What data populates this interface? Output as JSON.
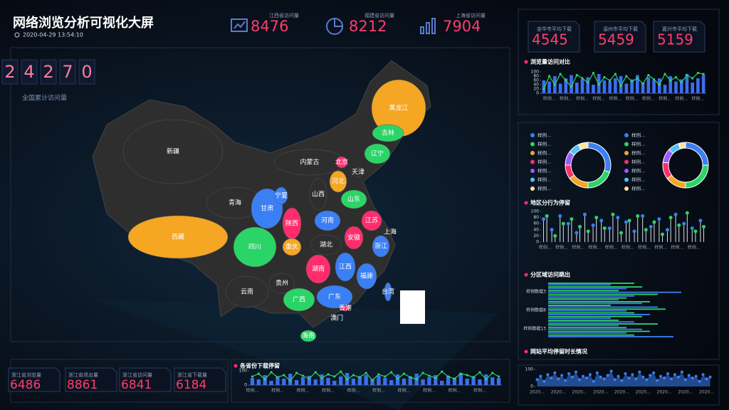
{
  "header": {
    "title": "网络浏览分析可视化大屏",
    "datetime": "2020-04-29 13:54:10"
  },
  "stats": [
    {
      "label": "江西省访问量",
      "value": "8476"
    },
    {
      "label": "福建省访问量",
      "value": "8212"
    },
    {
      "label": "上海省访问量",
      "value": "7904"
    }
  ],
  "total": {
    "digits": [
      "2",
      "4",
      "2",
      "7",
      "0"
    ],
    "label": "全国累计访问量"
  },
  "map": {
    "provinces": [
      {
        "name": "新疆",
        "color": "#2e2e2e"
      },
      {
        "name": "西藏",
        "color": "#f5a623"
      },
      {
        "name": "青海",
        "color": "#2e2e2e"
      },
      {
        "name": "甘肃",
        "color": "#3b7ff5"
      },
      {
        "name": "内蒙古",
        "color": "#2e2e2e"
      },
      {
        "name": "黑龙江",
        "color": "#f5a623"
      },
      {
        "name": "吉林",
        "color": "#2bd467"
      },
      {
        "name": "辽宁",
        "color": "#2bd467"
      },
      {
        "name": "北京",
        "color": "#ff2d6e"
      },
      {
        "name": "天津",
        "color": "#2e2e2e"
      },
      {
        "name": "河北",
        "color": "#f5a623"
      },
      {
        "name": "山西",
        "color": "#2e2e2e"
      },
      {
        "name": "山东",
        "color": "#2bd467"
      },
      {
        "name": "宁夏",
        "color": "#3b7ff5"
      },
      {
        "name": "陕西",
        "color": "#ff2d6e"
      },
      {
        "name": "河南",
        "color": "#3b7ff5"
      },
      {
        "name": "江苏",
        "color": "#ff2d6e"
      },
      {
        "name": "安徽",
        "color": "#ff2d6e"
      },
      {
        "name": "上海",
        "color": "#2e2e2e"
      },
      {
        "name": "四川",
        "color": "#2bd467"
      },
      {
        "name": "重庆",
        "color": "#f5a623"
      },
      {
        "name": "湖北",
        "color": "#2e2e2e"
      },
      {
        "name": "浙江",
        "color": "#3b7ff5"
      },
      {
        "name": "湖南",
        "color": "#ff2d6e"
      },
      {
        "name": "江西",
        "color": "#3b7ff5"
      },
      {
        "name": "福建",
        "color": "#3b7ff5"
      },
      {
        "name": "贵州",
        "color": "#2e2e2e"
      },
      {
        "name": "云南",
        "color": "#2e2e2e"
      },
      {
        "name": "广西",
        "color": "#2bd467"
      },
      {
        "name": "广东",
        "color": "#3b7ff5"
      },
      {
        "name": "台湾",
        "color": "#3b7ff5"
      },
      {
        "name": "香港",
        "color": "#ff2d6e"
      },
      {
        "name": "澳门",
        "color": "#2e2e2e"
      },
      {
        "name": "海南",
        "color": "#2bd467"
      }
    ]
  },
  "bottom_stats": [
    {
      "label": "浙江省浏览量",
      "value": "6486"
    },
    {
      "label": "浙江省退出量",
      "value": "8861"
    },
    {
      "label": "浙江省访问量",
      "value": "6841"
    },
    {
      "label": "浙江省下载量",
      "value": "6184"
    }
  ],
  "right_stats": [
    {
      "label": "金华市平均下载",
      "value": "4545"
    },
    {
      "label": "温州市平均下载",
      "value": "5459"
    },
    {
      "label": "嘉兴市平均下载",
      "value": "5159"
    }
  ],
  "chart_data": [
    {
      "type": "bar_line",
      "title": "浏览量访问对比",
      "categories": [
        null,
        "样例...",
        null,
        null,
        "样例...",
        null,
        null,
        "样例...",
        null,
        null,
        "样例...",
        null,
        null,
        "样例...",
        null,
        null,
        "样例...",
        null,
        null,
        "样例...",
        null,
        null,
        "样例...",
        null,
        null,
        "样例...",
        null,
        null,
        "样例...",
        null
      ],
      "ylim": [
        0,
        100
      ],
      "yticks": [
        0,
        20,
        40,
        60,
        80,
        100
      ],
      "series": [
        {
          "kind": "bar",
          "color": "#3b6ff0",
          "values": [
            60,
            55,
            80,
            45,
            70,
            85,
            50,
            65,
            75,
            40,
            90,
            60,
            55,
            70,
            80,
            45,
            65,
            85,
            50,
            75,
            60,
            70,
            40,
            80,
            55,
            65,
            90,
            50,
            70,
            85
          ]
        },
        {
          "kind": "line",
          "color": "#2bd467",
          "values": [
            20,
            80,
            40,
            90,
            60,
            30,
            85,
            70,
            50,
            95,
            40,
            75,
            60,
            90,
            35,
            80,
            55,
            70,
            45,
            85,
            65,
            40,
            90,
            60,
            75,
            50,
            85,
            70,
            95,
            90
          ]
        }
      ]
    },
    {
      "type": "pie",
      "categories": [
        "样例...",
        "样例...",
        "样例...",
        "样例...",
        "样例...",
        "样例...",
        "样例..."
      ],
      "values": [
        30,
        20,
        15,
        10,
        10,
        8,
        7
      ],
      "colors": [
        "#3b7ff5",
        "#2bd467",
        "#f5a623",
        "#ff2d6e",
        "#9b59ff",
        "#4fc3f7",
        "#ffe3a0"
      ]
    },
    {
      "type": "pie",
      "categories": [
        "样例...",
        "样例...",
        "样例...",
        "样例...",
        "样例...",
        "样例...",
        "样例..."
      ],
      "values": [
        25,
        25,
        15,
        12,
        10,
        8,
        5
      ],
      "colors": [
        "#3b7ff5",
        "#2bd467",
        "#f5a623",
        "#ff2d6e",
        "#9b59ff",
        "#4fc3f7",
        "#ffe3a0"
      ]
    },
    {
      "type": "lollipop",
      "title": "地区分行为停留",
      "categories": [
        "样例...",
        null,
        "样例...",
        null,
        "样例...",
        null,
        "样例...",
        null,
        "样例...",
        null,
        "样例...",
        null,
        "样例...",
        null,
        "样例...",
        null,
        "样例...",
        null,
        "样例...",
        null
      ],
      "ylim": [
        0,
        100
      ],
      "yticks": [
        0,
        20,
        40,
        60,
        80,
        100
      ],
      "series": [
        {
          "color": "#3b7ff5",
          "values": [
            75,
            40,
            85,
            60,
            30,
            90,
            55,
            70,
            45,
            80,
            65,
            35,
            85,
            50,
            75,
            40,
            90,
            60,
            45,
            70
          ]
        },
        {
          "color": "#2bd467",
          "values": [
            85,
            20,
            60,
            75,
            50,
            35,
            80,
            45,
            90,
            30,
            70,
            85,
            40,
            65,
            25,
            80,
            55,
            95,
            35,
            50
          ]
        }
      ]
    },
    {
      "type": "hbar",
      "title": "分区域访问跳出",
      "categories": [
        null,
        null,
        "样例数据3",
        null,
        null,
        null,
        null,
        "样例数据8",
        null,
        null,
        null,
        null,
        "样例数据13",
        null,
        null
      ],
      "xlim": [
        0,
        100
      ],
      "series": [
        {
          "color": "#2bd467",
          "values": [
            55,
            60,
            45,
            70,
            50,
            65,
            40,
            75,
            55,
            60,
            45,
            70,
            50,
            65,
            55
          ]
        },
        {
          "color": "#3b7ff5",
          "values": [
            40,
            50,
            85,
            55,
            45,
            60,
            70,
            50,
            65,
            40,
            55,
            45,
            60,
            50,
            80
          ]
        }
      ]
    },
    {
      "type": "area",
      "title": "网站平均停留时长情况",
      "categories": [
        "2020...",
        null,
        null,
        null,
        null,
        null,
        "2020...",
        null,
        null,
        null,
        null,
        null,
        "2020...",
        null,
        null,
        null,
        null,
        null,
        "2020...",
        null,
        null,
        null,
        null,
        null,
        "2020...",
        null,
        null,
        null,
        null,
        null,
        "2020...",
        null,
        null,
        null,
        null,
        null,
        "2020...",
        null,
        null,
        null,
        null,
        null,
        "2020...",
        null,
        null,
        null,
        null,
        null,
        "2020...",
        null
      ],
      "ylim": [
        0,
        100
      ],
      "yticks": [
        0,
        100
      ],
      "color": "#3b7ff5",
      "values": [
        40,
        60,
        30,
        70,
        50,
        80,
        45,
        65,
        35,
        75,
        55,
        85,
        40,
        60,
        50,
        70,
        30,
        80,
        55,
        45,
        65,
        90,
        40,
        60,
        35,
        75,
        50,
        70,
        45,
        85,
        55,
        40,
        65,
        80,
        35,
        60,
        50,
        75,
        45,
        70,
        55,
        85,
        40,
        65,
        50,
        60,
        30,
        70,
        45,
        55
      ]
    },
    {
      "type": "bar_line",
      "title": "各省份下载停留",
      "categories": [
        "样例...",
        null,
        null,
        null,
        "样例...",
        null,
        null,
        null,
        "样例...",
        null,
        null,
        null,
        "样例...",
        null,
        null,
        null,
        "样例...",
        null,
        null,
        null,
        "样例...",
        null,
        null,
        null,
        "样例...",
        null,
        null,
        null,
        "样例...",
        null,
        null,
        null,
        "样例...",
        null,
        null,
        null,
        "样例...",
        null,
        null,
        null
      ],
      "ylim": [
        0,
        100
      ],
      "yticks": [
        0,
        100
      ],
      "series": [
        {
          "kind": "bar",
          "color": "#3b6ff0",
          "values": [
            50,
            40,
            70,
            30,
            60,
            45,
            80,
            35,
            55,
            65,
            40,
            75,
            50,
            30,
            60,
            85,
            45,
            55,
            70,
            40,
            65,
            50,
            35,
            75,
            45,
            60,
            80,
            40,
            55,
            70,
            30,
            65,
            50,
            85,
            45,
            60,
            40,
            75,
            55,
            50
          ]
        },
        {
          "kind": "line",
          "color": "#2bd467",
          "values": [
            60,
            80,
            40,
            90,
            55,
            70,
            30,
            85,
            65,
            45,
            90,
            50,
            75,
            60,
            95,
            40,
            70,
            55,
            85,
            35,
            75,
            60,
            90,
            45,
            80,
            55,
            40,
            85,
            65,
            50,
            95,
            60,
            45,
            80,
            70,
            55,
            90,
            40,
            85,
            60
          ]
        }
      ]
    }
  ]
}
